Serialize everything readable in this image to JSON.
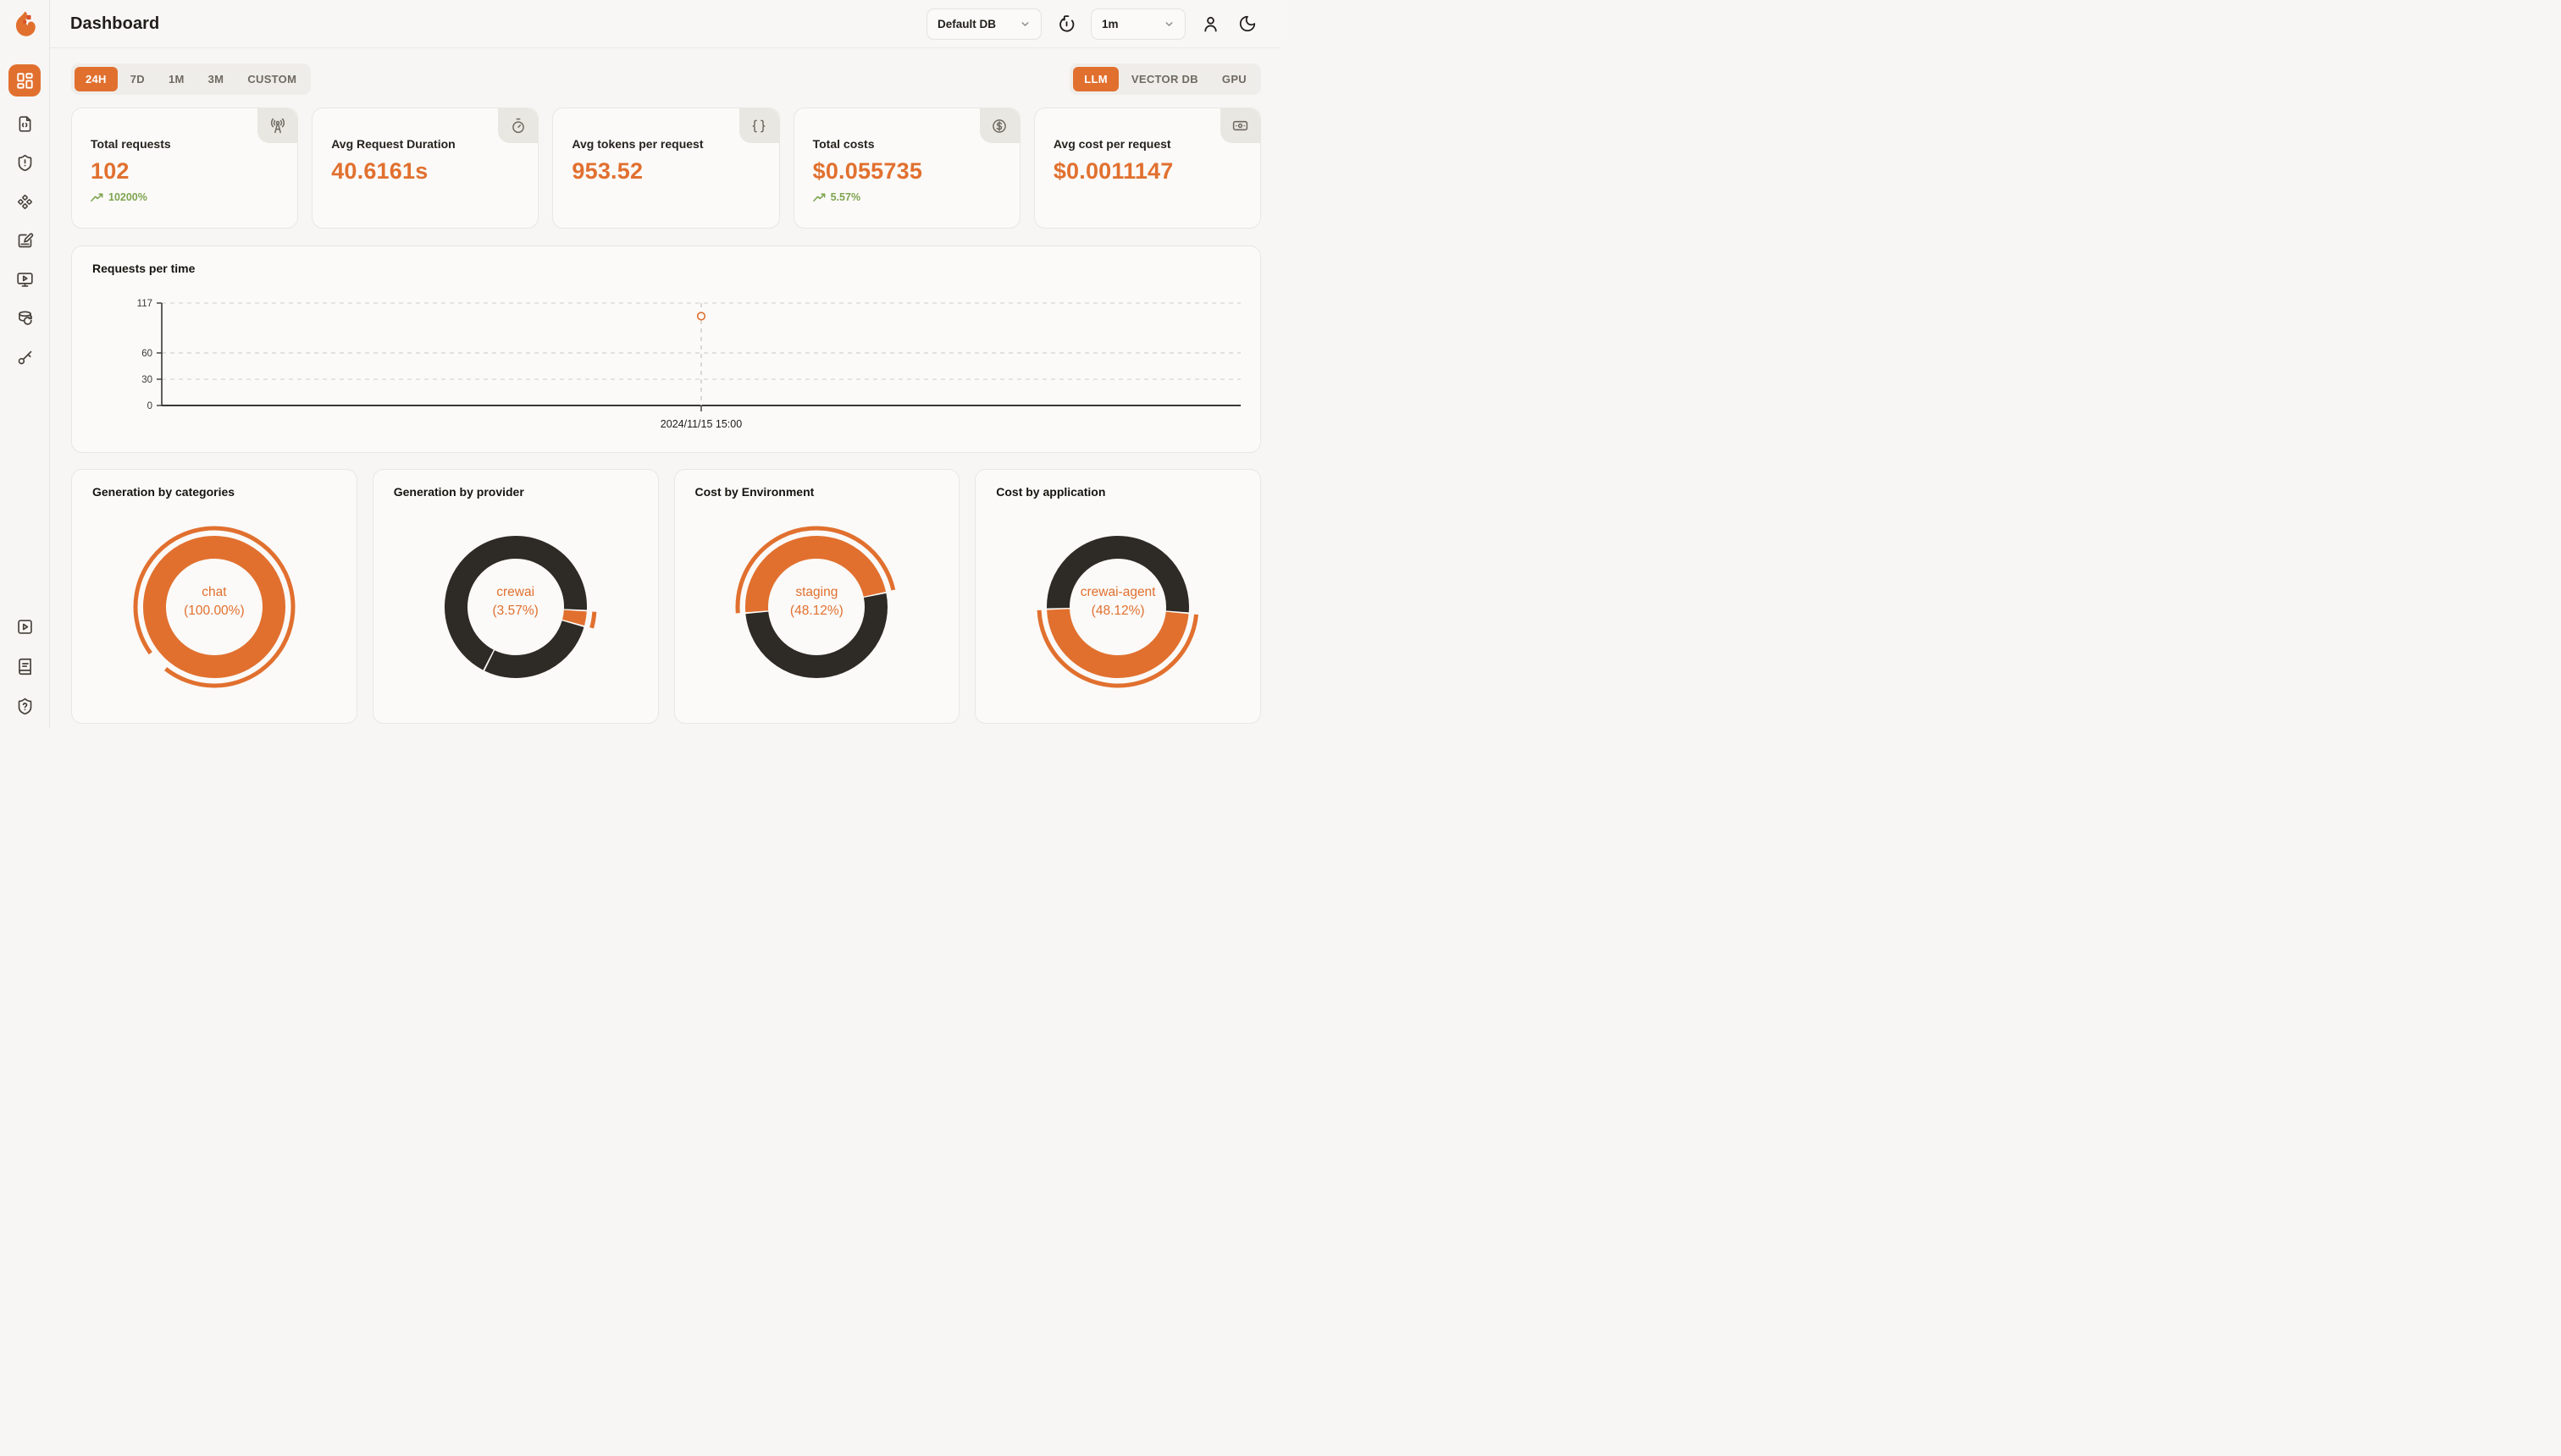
{
  "header": {
    "title": "Dashboard",
    "db_selector": "Default DB",
    "refresh_interval": "1m"
  },
  "sidebar": {
    "items": [
      {
        "name": "dashboard",
        "active": true
      },
      {
        "name": "requests"
      },
      {
        "name": "exceptions"
      },
      {
        "name": "vault"
      },
      {
        "name": "prompt-studio"
      },
      {
        "name": "playground"
      },
      {
        "name": "database-config"
      },
      {
        "name": "api-keys"
      }
    ],
    "bottom_items": [
      {
        "name": "getting-started"
      },
      {
        "name": "documentation"
      },
      {
        "name": "support"
      }
    ]
  },
  "time_tabs": {
    "items": [
      "24H",
      "7D",
      "1M",
      "3M",
      "CUSTOM"
    ],
    "active": "24H"
  },
  "scope_tabs": {
    "items": [
      "LLM",
      "VECTOR DB",
      "GPU"
    ],
    "active": "LLM"
  },
  "stat_cards": [
    {
      "label": "Total requests",
      "value": "102",
      "trend": "10200%",
      "icon": "radio-tower"
    },
    {
      "label": "Avg Request Duration",
      "value": "40.6161s",
      "trend": "",
      "icon": "timer"
    },
    {
      "label": "Avg tokens per request",
      "value": "953.52",
      "trend": "",
      "icon": "braces"
    },
    {
      "label": "Total costs",
      "value": "$0.055735",
      "trend": "5.57%",
      "icon": "circle-dollar-sign"
    },
    {
      "label": "Avg cost per request",
      "value": "$0.0011147",
      "trend": "",
      "icon": "banknote"
    }
  ],
  "colors": {
    "accent_orange": "#e1702f",
    "dark_segment": "#2e2a25",
    "trend_green": "#7ea44f"
  },
  "chart_data": [
    {
      "type": "line",
      "title": "Requests per time",
      "x_labels": [
        "2024/11/15 15:00"
      ],
      "series": [
        {
          "name": "Requests",
          "values": [
            102
          ]
        }
      ],
      "ylim": [
        0,
        117
      ],
      "y_ticks": [
        0,
        30,
        60,
        117
      ],
      "point_x_fraction": 0.5,
      "grid": "horizontal-dashed",
      "accent_color": "#e1702f"
    },
    {
      "type": "pie",
      "title": "Generation by categories",
      "center_label": "chat",
      "center_pct": "(100.00%)",
      "start_angle": 230,
      "segments": [
        {
          "label": "chat",
          "pct": 100.0,
          "color": "#e1702f"
        }
      ],
      "highlight": {
        "start": 234,
        "span": 344
      }
    },
    {
      "type": "pie",
      "title": "Generation by provider",
      "center_label": "crewai",
      "center_pct": "(3.57%)",
      "start_angle": 93,
      "segments": [
        {
          "label": "crewai",
          "pct": 3.57,
          "color": "#e1702f"
        },
        {
          "label": "",
          "pct": 28.0,
          "color": "#2e2a25"
        },
        {
          "label": "",
          "pct": 68.43,
          "color": "#2e2a25"
        }
      ],
      "highlight": {
        "start": 93.5,
        "span": 12
      }
    },
    {
      "type": "pie",
      "title": "Cost by Environment",
      "center_label": "staging",
      "center_pct": "(48.12%)",
      "start_angle": 265,
      "segments": [
        {
          "label": "staging",
          "pct": 48.12,
          "color": "#e1702f"
        },
        {
          "label": "",
          "pct": 51.88,
          "color": "#2e2a25"
        }
      ],
      "highlight": {
        "start": 265.5,
        "span": 172
      }
    },
    {
      "type": "pie",
      "title": "Cost by application",
      "center_label": "crewai-agent",
      "center_pct": "(48.12%)",
      "start_angle": 95,
      "segments": [
        {
          "label": "crewai-agent",
          "pct": 48.12,
          "color": "#e1702f"
        },
        {
          "label": "",
          "pct": 51.88,
          "color": "#2e2a25"
        }
      ],
      "highlight": {
        "start": 95.5,
        "span": 172
      }
    }
  ]
}
